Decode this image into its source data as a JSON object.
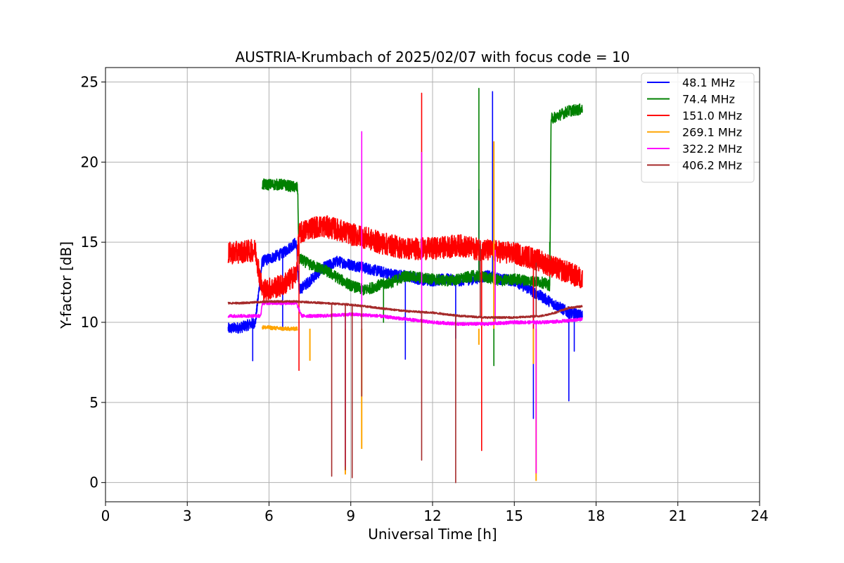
{
  "chart_data": {
    "type": "line",
    "title": "AUSTRIA-Krumbach of 2025/02/07 with focus code = 10",
    "xlabel": "Universal Time [h]",
    "ylabel": "Y-factor [dB]",
    "xlim": [
      0,
      24
    ],
    "ylim": [
      -1.2,
      25.9
    ],
    "xticks": [
      0,
      3,
      6,
      9,
      12,
      15,
      18,
      21,
      24
    ],
    "yticks": [
      0,
      5,
      10,
      15,
      20,
      25
    ],
    "grid": true,
    "legend_position": "top-right",
    "series": [
      {
        "name": " 48.1 MHz",
        "color": "#0000ff",
        "noise": 0.35,
        "x": [
          4.5,
          5.0,
          5.5,
          5.75,
          6.5,
          7.0,
          7.1,
          7.5,
          8.0,
          8.5,
          9.0,
          9.5,
          10.0,
          10.5,
          11.0,
          11.5,
          12.0,
          12.5,
          13.0,
          13.5,
          14.0,
          14.5,
          15.0,
          15.5,
          16.0,
          16.5,
          17.0,
          17.5
        ],
        "y": [
          9.6,
          9.7,
          10.0,
          13.8,
          14.3,
          15.0,
          12.0,
          12.6,
          13.4,
          13.8,
          13.6,
          13.4,
          13.2,
          13.0,
          12.9,
          12.7,
          12.6,
          12.7,
          12.6,
          12.7,
          12.9,
          12.7,
          12.6,
          12.1,
          11.6,
          11.1,
          10.6,
          10.4
        ],
        "spikes": [
          [
            5.4,
            7.6
          ],
          [
            6.5,
            9.5
          ],
          [
            11.0,
            7.7
          ],
          [
            12.85,
            9.0
          ],
          [
            13.7,
            18.3
          ],
          [
            14.2,
            24.4
          ],
          [
            15.7,
            4.0
          ],
          [
            17.0,
            5.1
          ],
          [
            17.2,
            8.2
          ]
        ]
      },
      {
        "name": " 74.4 MHz",
        "color": "#008000",
        "noise": 0.35,
        "x": [
          5.75,
          6.5,
          7.05,
          7.1,
          7.5,
          8.0,
          8.5,
          9.0,
          9.5,
          10.0,
          10.5,
          11.0,
          11.5,
          12.0,
          12.5,
          13.0,
          13.5,
          14.0,
          14.5,
          15.0,
          15.5,
          16.0,
          16.3,
          16.35,
          17.0,
          17.5
        ],
        "y": [
          18.6,
          18.6,
          18.4,
          14.0,
          13.6,
          13.3,
          12.8,
          12.3,
          12.0,
          12.3,
          12.5,
          12.9,
          12.8,
          12.7,
          12.6,
          12.7,
          12.9,
          12.8,
          12.6,
          12.7,
          12.6,
          12.5,
          12.3,
          22.7,
          23.2,
          23.3
        ],
        "spikes": [
          [
            13.7,
            24.6
          ],
          [
            14.25,
            7.3
          ],
          [
            16.3,
            15.0
          ],
          [
            10.2,
            10.0
          ]
        ]
      },
      {
        "name": "151.0 MHz",
        "color": "#ff0000",
        "noise": 0.7,
        "x": [
          4.5,
          5.0,
          5.5,
          5.75,
          6.5,
          7.0,
          7.1,
          7.5,
          8.0,
          8.5,
          9.0,
          9.5,
          10.0,
          10.5,
          11.0,
          11.5,
          12.0,
          12.5,
          13.0,
          13.5,
          14.0,
          14.5,
          15.0,
          15.5,
          16.0,
          16.5,
          17.0,
          17.5
        ],
        "y": [
          14.3,
          14.4,
          14.5,
          12.0,
          12.3,
          13.0,
          15.5,
          15.9,
          16.0,
          15.8,
          15.5,
          15.3,
          15.0,
          14.8,
          14.6,
          14.6,
          14.6,
          14.7,
          14.8,
          14.6,
          14.5,
          14.4,
          14.3,
          14.1,
          13.8,
          13.4,
          13.1,
          12.7
        ],
        "spikes": [
          [
            7.1,
            7.0
          ],
          [
            11.6,
            24.3
          ],
          [
            13.8,
            2.0
          ],
          [
            15.7,
            7.5
          ]
        ]
      },
      {
        "name": "269.1 MHz",
        "color": "#ffa500",
        "noise": 0.12,
        "x": [
          5.75,
          6.5,
          7.05
        ],
        "y": [
          9.7,
          9.6,
          9.6
        ],
        "spikes": [
          [
            7.5,
            7.6
          ],
          [
            8.8,
            0.5
          ],
          [
            9.4,
            2.1
          ],
          [
            13.7,
            8.6
          ],
          [
            14.25,
            21.3
          ],
          [
            15.7,
            7.4
          ],
          [
            15.8,
            0.1
          ]
        ]
      },
      {
        "name": "322.2 MHz",
        "color": "#ff00ff",
        "noise": 0.1,
        "x": [
          4.5,
          5.0,
          5.7,
          5.75,
          6.5,
          7.0,
          7.2,
          8.0,
          9.0,
          10.0,
          11.0,
          12.0,
          13.0,
          14.0,
          15.0,
          16.0,
          17.0,
          17.5
        ],
        "y": [
          10.4,
          10.4,
          10.4,
          11.2,
          11.2,
          11.2,
          10.4,
          10.4,
          10.5,
          10.4,
          10.2,
          10.0,
          9.9,
          9.9,
          10.0,
          10.0,
          10.1,
          10.2
        ],
        "spikes": [
          [
            8.8,
            1.0
          ],
          [
            9.4,
            21.9
          ],
          [
            11.6,
            20.6
          ],
          [
            14.3,
            14.5
          ],
          [
            15.8,
            0.6
          ]
        ]
      },
      {
        "name": "406.2 MHz",
        "color": "#a52a2a",
        "noise": 0.06,
        "x": [
          4.5,
          5.0,
          6.0,
          7.0,
          8.0,
          9.0,
          10.0,
          11.0,
          12.0,
          13.0,
          14.0,
          15.0,
          16.0,
          16.5,
          17.0,
          17.5
        ],
        "y": [
          11.2,
          11.2,
          11.3,
          11.3,
          11.2,
          11.1,
          10.9,
          10.7,
          10.6,
          10.4,
          10.3,
          10.3,
          10.4,
          10.6,
          10.9,
          11.0
        ],
        "spikes": [
          [
            8.3,
            0.4
          ],
          [
            8.8,
            0.8
          ],
          [
            9.05,
            0.3
          ],
          [
            9.4,
            5.4
          ],
          [
            11.6,
            1.4
          ],
          [
            12.85,
            0.0
          ],
          [
            13.75,
            14.8
          ],
          [
            15.8,
            13.7
          ]
        ]
      }
    ]
  }
}
